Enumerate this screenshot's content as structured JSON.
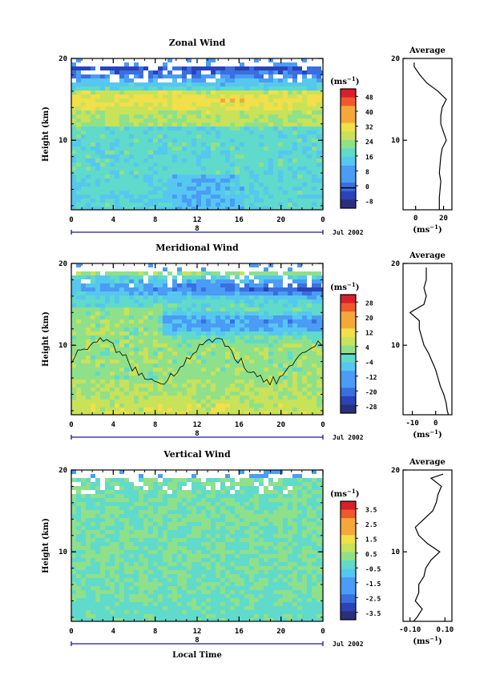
{
  "chart_data": [
    {
      "type": "heatmap",
      "title": "Zonal Wind",
      "ylabel": "Height (km)",
      "xlabel": "",
      "x_ticks": [
        "0",
        "4",
        "8",
        "12",
        "16",
        "20",
        "0"
      ],
      "y_ticks": [
        "20",
        "10"
      ],
      "xlim": [
        0,
        24
      ],
      "ylim": [
        1.5,
        20
      ],
      "date_marker": "8",
      "date_label": "Jul 2002",
      "colorbar": {
        "unit_base": "(ms",
        "unit_exp": "−1",
        "unit_close": ")",
        "ticks": [
          "48",
          "40",
          "32",
          "24",
          "16",
          "8",
          "0",
          "-8"
        ],
        "range": [
          -8,
          52
        ]
      },
      "average_profile": {
        "title": "Average",
        "x_ticks": [
          "0",
          "20"
        ],
        "y_ticks": [
          "20",
          "10"
        ],
        "xlim": [
          -9,
          26
        ],
        "unit_base": "(ms",
        "unit_exp": "−1",
        "unit_close": ")",
        "heights": [
          1.5,
          2,
          3,
          4,
          5,
          6,
          7,
          8,
          9,
          10,
          11,
          12,
          13,
          14,
          15,
          16,
          17,
          18,
          19,
          19.5
        ],
        "values": [
          17,
          17,
          17,
          17.5,
          18,
          17,
          17.5,
          18,
          19,
          22,
          20,
          18,
          18,
          19,
          22,
          16,
          8,
          3,
          -1,
          -1
        ]
      }
    },
    {
      "type": "heatmap",
      "title": "Meridional Wind",
      "ylabel": "Height (km)",
      "xlabel": "",
      "x_ticks": [
        "0",
        "4",
        "8",
        "12",
        "16",
        "20",
        "0"
      ],
      "y_ticks": [
        "20",
        "10"
      ],
      "xlim": [
        0,
        24
      ],
      "ylim": [
        1.5,
        20
      ],
      "date_marker": "8",
      "date_label": "Jul 2002",
      "colorbar": {
        "unit_base": "(ms",
        "unit_exp": "−1",
        "unit_close": ")",
        "ticks": [
          "28",
          "20",
          "12",
          "4",
          "-4",
          "-12",
          "-20",
          "-28"
        ],
        "range": [
          -32,
          32
        ]
      },
      "average_profile": {
        "title": "Average",
        "x_ticks": [
          "-10",
          "0"
        ],
        "y_ticks": [
          "20",
          "10"
        ],
        "xlim": [
          -14,
          7
        ],
        "unit_base": "(ms",
        "unit_exp": "−1",
        "unit_close": ")",
        "heights": [
          1.5,
          2,
          3,
          4,
          5,
          6,
          7,
          8,
          9,
          10,
          11,
          12,
          13,
          14,
          15,
          16,
          17,
          18,
          19,
          19.5
        ],
        "values": [
          5.5,
          5,
          4.5,
          3.5,
          2,
          1,
          0,
          -1.5,
          -3,
          -5,
          -6,
          -7,
          -7,
          -11,
          -5,
          -4,
          -5,
          -4,
          -4,
          -4
        ]
      }
    },
    {
      "type": "heatmap",
      "title": "Vertical Wind",
      "ylabel": "Height (km)",
      "xlabel": "Local Time",
      "x_ticks": [
        "0",
        "4",
        "8",
        "12",
        "16",
        "20",
        "0"
      ],
      "y_ticks": [
        "20",
        "10"
      ],
      "xlim": [
        0,
        24
      ],
      "ylim": [
        1.5,
        20
      ],
      "date_marker": "8",
      "date_label": "Jul 2002",
      "colorbar": {
        "unit_base": "(ms",
        "unit_exp": "−1",
        "unit_close": ")",
        "ticks": [
          "3.5",
          "2.5",
          "1.5",
          "0.5",
          "-0.5",
          "-1.5",
          "-2.5",
          "-3.5"
        ],
        "range": [
          -4,
          4
        ]
      },
      "average_profile": {
        "title": "Average",
        "x_ticks": [
          "-0.10",
          "0.10"
        ],
        "y_ticks": [
          "20",
          "10"
        ],
        "xlim": [
          -0.14,
          0.14
        ],
        "unit_base": "(ms",
        "unit_exp": "−1",
        "unit_close": ")",
        "heights": [
          1.5,
          2,
          3,
          4,
          5,
          6,
          7,
          8,
          9,
          10,
          11,
          12,
          13,
          14,
          15,
          16,
          17,
          18,
          19,
          19.5
        ],
        "values": [
          -0.08,
          -0.06,
          -0.03,
          -0.07,
          -0.05,
          -0.05,
          -0.02,
          -0.01,
          0.02,
          0.07,
          0.0,
          -0.05,
          -0.07,
          -0.02,
          0.03,
          0.05,
          0.06,
          0.08,
          0.02,
          0.09
        ]
      }
    }
  ]
}
